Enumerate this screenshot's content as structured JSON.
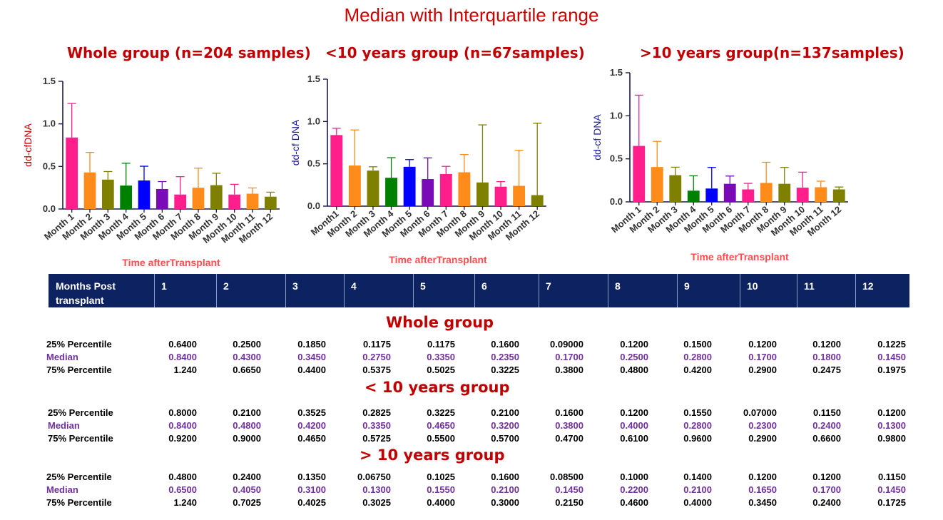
{
  "main_title": "Median with Interquartile range",
  "chart_data": [
    {
      "type": "bar",
      "title": "Whole group (n=204 samples)",
      "xlabel": "Time afterTransplant",
      "ylabel": "dd-cfDNA",
      "ylabel_color": "#c00000",
      "ylim": [
        0,
        1.5
      ],
      "yticks": [
        "0.0",
        "0.5",
        "1.0",
        "1.5"
      ],
      "categories": [
        "Month 1",
        "Month 2",
        "Month 3",
        "Month 4",
        "Month 5",
        "Month 6",
        "Month 7",
        "Month 8",
        "Month 9",
        "Month 10",
        "Month 11",
        "Month 12"
      ],
      "values": [
        0.84,
        0.43,
        0.345,
        0.275,
        0.335,
        0.235,
        0.17,
        0.25,
        0.28,
        0.17,
        0.18,
        0.145
      ],
      "upper": [
        1.24,
        0.665,
        0.44,
        0.5375,
        0.5025,
        0.3225,
        0.38,
        0.48,
        0.42,
        0.29,
        0.2475,
        0.1975
      ],
      "colors": [
        "#ff1e8c",
        "#ff8c1a",
        "#808000",
        "#008000",
        "#0000ff",
        "#7a0ab8",
        "#ff1e8c",
        "#ff8c1a",
        "#808000",
        "#ff1e8c",
        "#ff8c1a",
        "#808000"
      ]
    },
    {
      "type": "bar",
      "title": "<10 years group (n=67samples)",
      "xlabel": "Time afterTransplant",
      "ylabel": "dd-cf DNA",
      "ylabel_color": "#1a1aa0",
      "ylim": [
        0,
        1.5
      ],
      "yticks": [
        "0.0",
        "0.5",
        "1.0",
        "1.5"
      ],
      "categories": [
        "Month1",
        "Month 2",
        "Month 3",
        "Month 4",
        "Month 5",
        "Month 6",
        "Month 7",
        "Month 8",
        "Month 9",
        "Month 10",
        "Month 11",
        "Month 12"
      ],
      "values": [
        0.84,
        0.48,
        0.42,
        0.335,
        0.465,
        0.32,
        0.38,
        0.4,
        0.28,
        0.23,
        0.24,
        0.13
      ],
      "upper": [
        0.92,
        0.9,
        0.465,
        0.5725,
        0.55,
        0.57,
        0.47,
        0.61,
        0.96,
        0.29,
        0.66,
        0.98
      ],
      "colors": [
        "#ff1e8c",
        "#ff8c1a",
        "#808000",
        "#008000",
        "#0000ff",
        "#7a0ab8",
        "#ff1e8c",
        "#ff8c1a",
        "#808000",
        "#ff1e8c",
        "#ff8c1a",
        "#808000"
      ]
    },
    {
      "type": "bar",
      "title": ">10 years group(n=137samples)",
      "xlabel": "Time afterTransplant",
      "ylabel": "dd-cf DNA",
      "ylabel_color": "#1a1aa0",
      "ylim": [
        0,
        1.5
      ],
      "yticks": [
        "0.0",
        "0.5",
        "1.0",
        "1.5"
      ],
      "categories": [
        "Month 1",
        "Month 2",
        "Month 3",
        "Month 4",
        "Month 5",
        "Month 6",
        "Month 7",
        "Month 8",
        "Month 9",
        "Month 10",
        "Month 11",
        "Month 12"
      ],
      "values": [
        0.65,
        0.405,
        0.31,
        0.13,
        0.155,
        0.21,
        0.145,
        0.22,
        0.21,
        0.165,
        0.17,
        0.145
      ],
      "upper": [
        1.24,
        0.7025,
        0.4025,
        0.3025,
        0.4,
        0.3,
        0.215,
        0.46,
        0.4,
        0.345,
        0.24,
        0.1725
      ],
      "colors": [
        "#ff1e8c",
        "#ff8c1a",
        "#808000",
        "#008000",
        "#0000ff",
        "#7a0ab8",
        "#ff1e8c",
        "#ff8c1a",
        "#808000",
        "#ff1e8c",
        "#ff8c1a",
        "#808000"
      ]
    }
  ],
  "table": {
    "header_label": "Months Post transplant",
    "months": [
      "1",
      "2",
      "3",
      "4",
      "5",
      "6",
      "7",
      "8",
      "9",
      "10",
      "11",
      "12"
    ],
    "row_labels": {
      "p25": "25% Percentile",
      "median": "Median",
      "p75": "75% Percentile"
    },
    "sections": [
      {
        "title": "Whole group",
        "p25": [
          "0.6400",
          "0.2500",
          "0.1850",
          "0.1175",
          "0.1175",
          "0.1600",
          "0.09000",
          "0.1200",
          "0.1500",
          "0.1200",
          "0.1200",
          "0.1225"
        ],
        "median": [
          "0.8400",
          "0.4300",
          "0.3450",
          "0.2750",
          "0.3350",
          "0.2350",
          "0.1700",
          "0.2500",
          "0.2800",
          "0.1700",
          "0.1800",
          "0.1450"
        ],
        "p75": [
          "1.240",
          "0.6650",
          "0.4400",
          "0.5375",
          "0.5025",
          "0.3225",
          "0.3800",
          "0.4800",
          "0.4200",
          "0.2900",
          "0.2475",
          "0.1975"
        ]
      },
      {
        "title": "< 10 years group",
        "p25": [
          "0.8000",
          "0.2100",
          "0.3525",
          "0.2825",
          "0.3225",
          "0.2100",
          "0.1600",
          "0.1200",
          "0.1550",
          "0.07000",
          "0.1150",
          "0.1200"
        ],
        "median": [
          "0.8400",
          "0.4800",
          "0.4200",
          "0.3350",
          "0.4650",
          "0.3200",
          "0.3800",
          "0.4000",
          "0.2800",
          "0.2300",
          "0.2400",
          "0.1300"
        ],
        "p75": [
          "0.9200",
          "0.9000",
          "0.4650",
          "0.5725",
          "0.5500",
          "0.5700",
          "0.4700",
          "0.6100",
          "0.9600",
          "0.2900",
          "0.6600",
          "0.9800"
        ]
      },
      {
        "title": "> 10 years group",
        "p25": [
          "0.4800",
          "0.2400",
          "0.1350",
          "0.06750",
          "0.1025",
          "0.1600",
          "0.08500",
          "0.1000",
          "0.1400",
          "0.1200",
          "0.1200",
          "0.1150"
        ],
        "median": [
          "0.6500",
          "0.4050",
          "0.3100",
          "0.1300",
          "0.1550",
          "0.2100",
          "0.1450",
          "0.2200",
          "0.2100",
          "0.1650",
          "0.1700",
          "0.1450"
        ],
        "p75": [
          "1.240",
          "0.7025",
          "0.4025",
          "0.3025",
          "0.4000",
          "0.3000",
          "0.2150",
          "0.4600",
          "0.4000",
          "0.3450",
          "0.2400",
          "0.1725"
        ]
      }
    ]
  }
}
